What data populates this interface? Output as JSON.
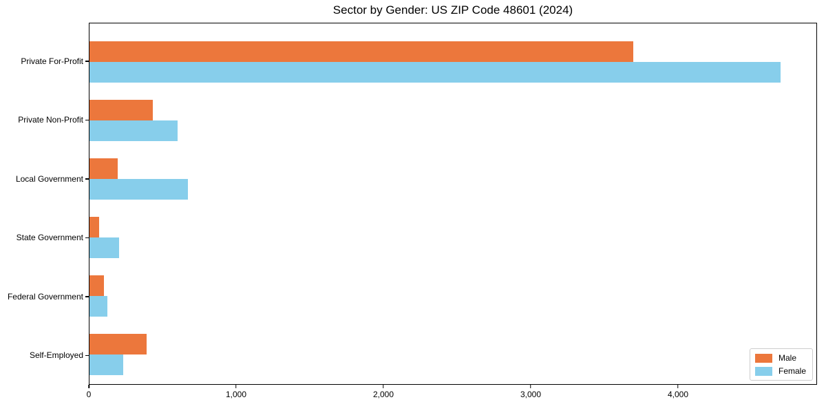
{
  "figure": {
    "background": "#ffffff",
    "axis_color": "#000000",
    "legend_border_color": "#cccccc"
  },
  "chart_data": {
    "type": "bar",
    "orientation": "horizontal",
    "title": "Sector by Gender: US ZIP Code 48601 (2024)",
    "categories": [
      "Private For-Profit",
      "Private Non-Profit",
      "Local Government",
      "State Government",
      "Federal Government",
      "Self-Employed"
    ],
    "series": [
      {
        "name": "Male",
        "color": "#EC773C",
        "values": [
          3700,
          430,
          190,
          65,
          100,
          390
        ]
      },
      {
        "name": "Female",
        "color": "#87CEEB",
        "values": [
          4700,
          600,
          670,
          200,
          120,
          230
        ]
      }
    ],
    "xlabel": "",
    "ylabel": "",
    "xlim": [
      0,
      4944
    ],
    "x_ticks": [
      0,
      1000,
      2000,
      3000,
      4000
    ],
    "x_tick_labels": [
      "0",
      "1,000",
      "2,000",
      "3,000",
      "4,000"
    ],
    "grid": false,
    "legend": {
      "position": "lower right",
      "entries": [
        "Male",
        "Female"
      ]
    }
  }
}
